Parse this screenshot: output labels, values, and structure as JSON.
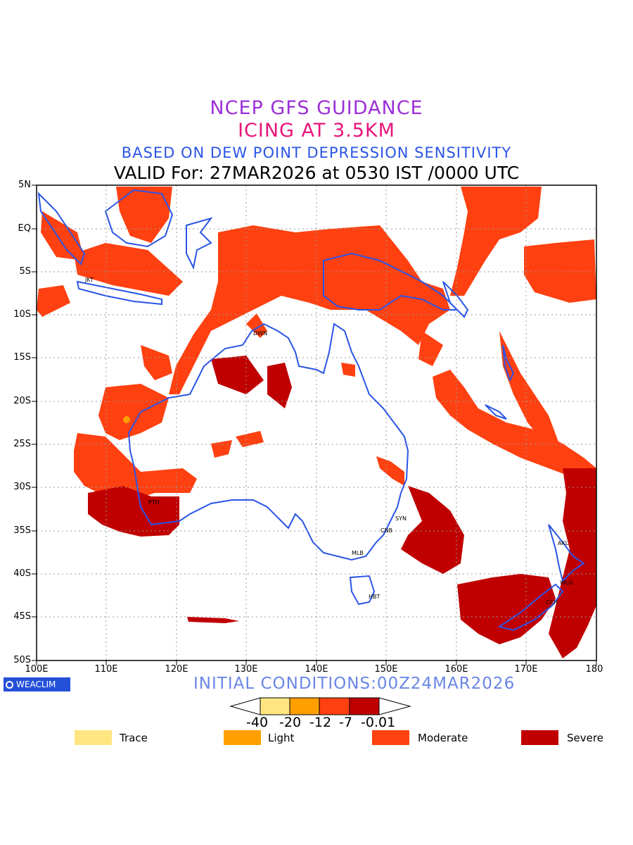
{
  "header": {
    "line1": "NCEP GFS GUIDANCE",
    "line2": "ICING AT 3.5KM",
    "line3": "BASED ON DEW POINT DEPRESSION SENSITIVITY",
    "line4": "VALID For: 27MAR2026 at 0530 IST /0000 UTC"
  },
  "axes": {
    "lat_labels": [
      "5N",
      "EQ",
      "5S",
      "10S",
      "15S",
      "20S",
      "25S",
      "30S",
      "35S",
      "40S",
      "45S",
      "50S"
    ],
    "lon_labels": [
      "100E",
      "110E",
      "120E",
      "130E",
      "140E",
      "150E",
      "160E",
      "170E",
      "180"
    ]
  },
  "cities": [
    {
      "code": "JKT"
    },
    {
      "code": "DWN"
    },
    {
      "code": "PTH"
    },
    {
      "code": "SYN"
    },
    {
      "code": "CNB"
    },
    {
      "code": "MLB"
    },
    {
      "code": "HBT"
    },
    {
      "code": "AKL"
    },
    {
      "code": "WLG"
    },
    {
      "code": "CCH"
    }
  ],
  "footer": {
    "logo": "WEACLIM",
    "initial_conditions": "INITIAL CONDITIONS:00Z24MAR2026"
  },
  "colorbar": {
    "ticks": [
      "-40",
      "-20",
      "-12",
      "-7",
      "-0.01"
    ],
    "colors": [
      "#ffe680",
      "#ffa000",
      "#ff4010",
      "#c00000"
    ]
  },
  "legend": [
    {
      "label": "Trace",
      "color": "#ffe680"
    },
    {
      "label": "Light",
      "color": "#ffa000"
    },
    {
      "label": "Moderate",
      "color": "#ff4010"
    },
    {
      "label": "Severe",
      "color": "#c00000"
    }
  ],
  "colors": {
    "moderate": "#ff4010",
    "severe": "#c00000",
    "coast": "#2a55e6",
    "light": "#ffa000"
  }
}
